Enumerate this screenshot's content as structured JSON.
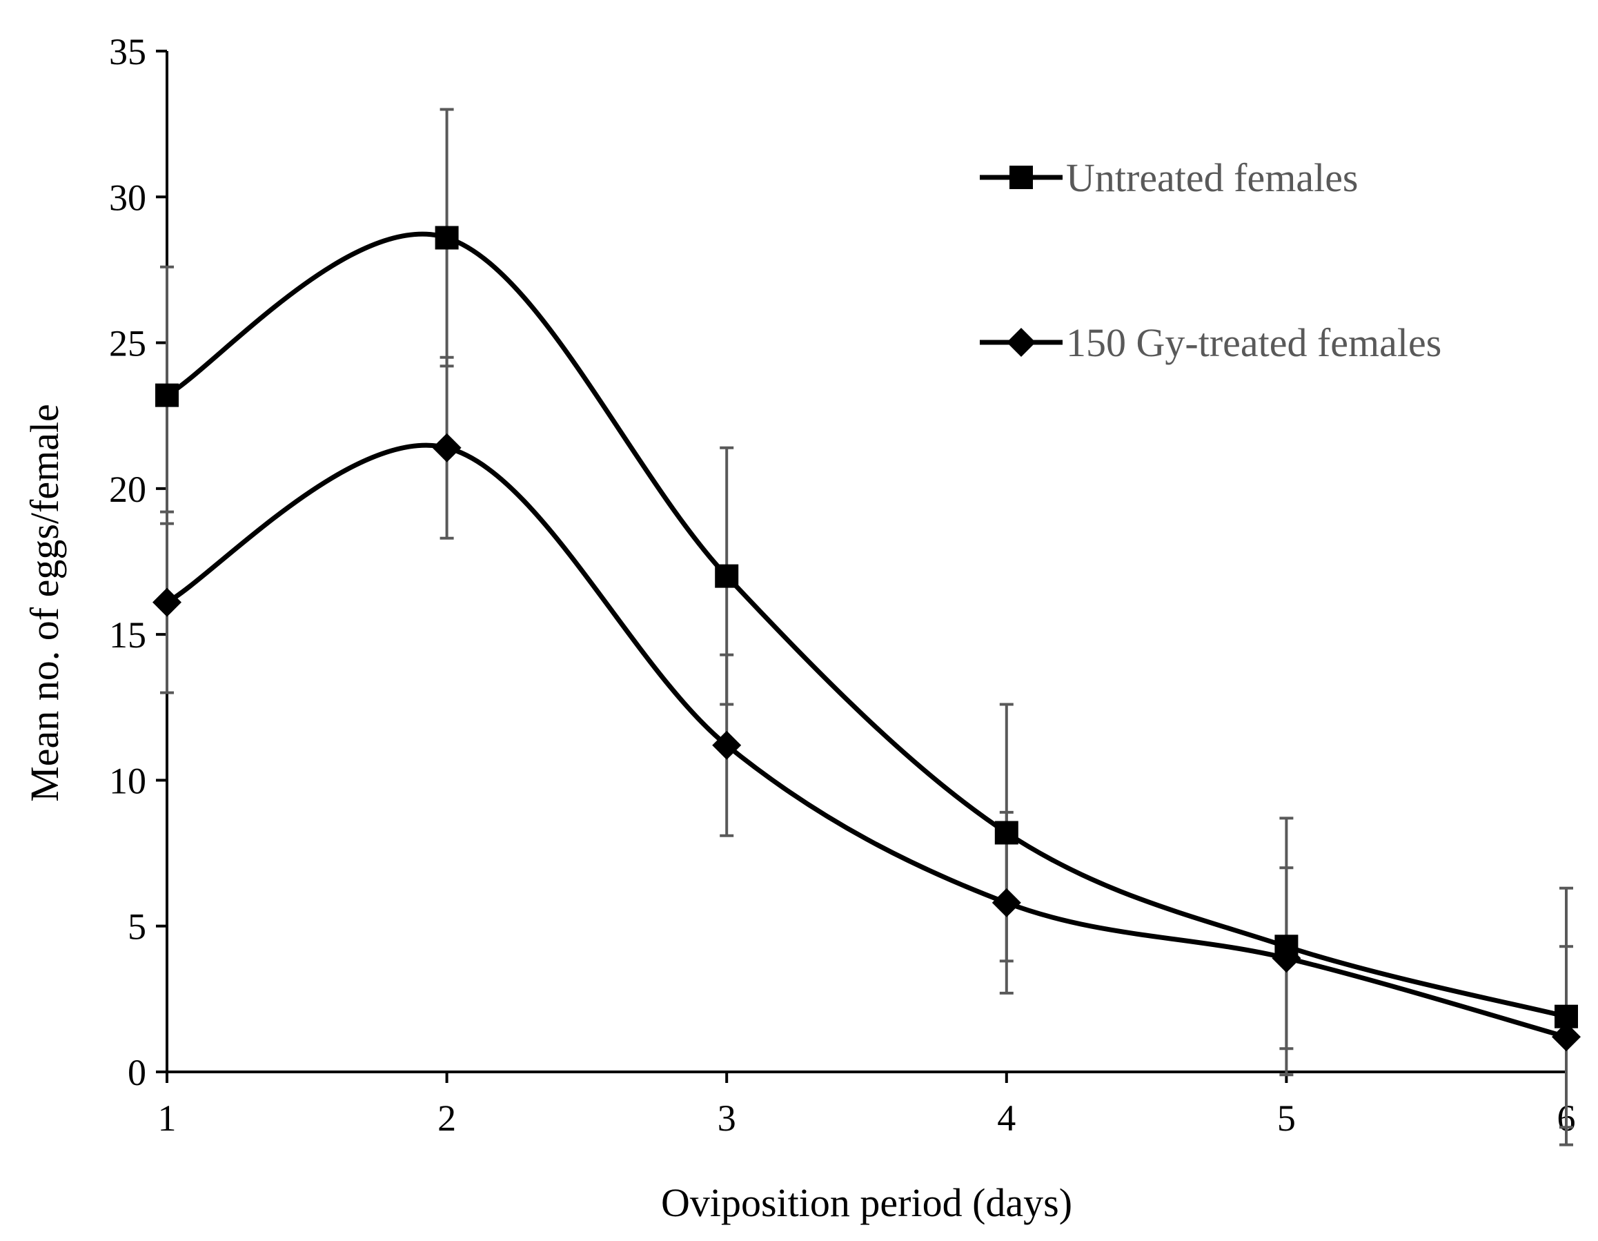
{
  "chart_data": {
    "type": "line",
    "smooth": true,
    "title": "",
    "xlabel": "Oviposition period (days)",
    "ylabel": "Mean no. of eggs/female",
    "x": [
      1,
      2,
      3,
      4,
      5,
      6
    ],
    "xlim": [
      1,
      6
    ],
    "ylim": [
      0,
      35
    ],
    "xticks": [
      1,
      2,
      3,
      4,
      5,
      6
    ],
    "yticks": [
      0,
      5,
      10,
      15,
      20,
      25,
      30,
      35
    ],
    "grid": false,
    "legend_position": "top-right",
    "series": [
      {
        "name": "Untreated females",
        "marker": "square",
        "color": "#000000",
        "values": [
          23.2,
          28.6,
          17.0,
          8.2,
          4.3,
          1.9
        ],
        "error": [
          4.4,
          4.4,
          4.4,
          4.4,
          4.4,
          4.4
        ]
      },
      {
        "name": "150 Gy-treated females",
        "marker": "diamond",
        "color": "#000000",
        "values": [
          16.1,
          21.4,
          11.2,
          5.8,
          3.9,
          1.2
        ],
        "error": [
          3.1,
          3.1,
          3.1,
          3.1,
          3.1,
          3.1
        ]
      }
    ],
    "errorbar_color": "#595959",
    "legend_text_color": "#595959"
  }
}
